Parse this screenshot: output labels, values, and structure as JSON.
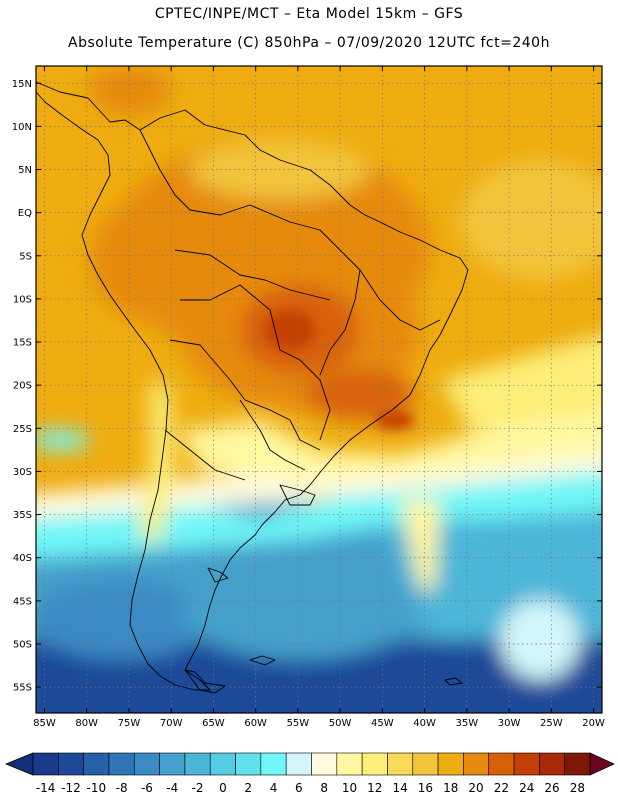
{
  "header": {
    "line1": "CPTEC/INPE/MCT –  Eta Model 15km – GFS",
    "line2": "Absolute Temperature (C) 850hPa – 07/09/2020 12UTC fct=240h"
  },
  "axes": {
    "lat_labels": [
      "15N",
      "10N",
      "5N",
      "EQ",
      "5S",
      "10S",
      "15S",
      "20S",
      "25S",
      "30S",
      "35S",
      "40S",
      "45S",
      "50S",
      "55S"
    ],
    "lat_values": [
      15,
      10,
      5,
      0,
      -5,
      -10,
      -15,
      -20,
      -25,
      -30,
      -35,
      -40,
      -45,
      -50,
      -55
    ],
    "lon_labels": [
      "85W",
      "80W",
      "75W",
      "70W",
      "65W",
      "60W",
      "55W",
      "50W",
      "45W",
      "40W",
      "35W",
      "30W",
      "25W",
      "20W"
    ],
    "lon_values": [
      -85,
      -80,
      -75,
      -70,
      -65,
      -60,
      -55,
      -50,
      -45,
      -40,
      -35,
      -30,
      -25,
      -20
    ],
    "lon_range": [
      -86,
      -19
    ],
    "lat_range": [
      -58,
      17
    ]
  },
  "colorbar": {
    "labels": [
      "-14",
      "-12",
      "-10",
      "-8",
      "-6",
      "-4",
      "-2",
      "0",
      "2",
      "4",
      "6",
      "8",
      "10",
      "12",
      "14",
      "16",
      "18",
      "20",
      "22",
      "24",
      "26",
      "28"
    ],
    "colors": [
      "#1a3a8c",
      "#1d4a98",
      "#2660a8",
      "#2e74b6",
      "#3a8ac4",
      "#44a0cc",
      "#4cb6d8",
      "#56cce4",
      "#62e0ec",
      "#70f6f8",
      "#d4f6fa",
      "#fffae0",
      "#fff8a0",
      "#fcee78",
      "#f8da58",
      "#f2c43a",
      "#eeac10",
      "#e68a10",
      "#d86008",
      "#c44004",
      "#a82808",
      "#7c1808"
    ],
    "low_arrow_color": "#12307a",
    "high_arrow_color": "#6a0420"
  }
}
